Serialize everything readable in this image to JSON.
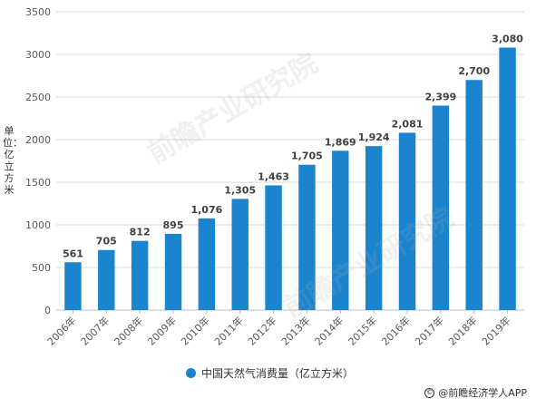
{
  "chart_data": {
    "type": "bar",
    "categories": [
      "2006年",
      "2007年",
      "2008年",
      "2009年",
      "2010年",
      "2011年",
      "2012年",
      "2013年",
      "2014年",
      "2015年",
      "2016年",
      "2017年",
      "2018年",
      "2019年"
    ],
    "series": [
      {
        "name": "中国天然气消费量（亿立方米）",
        "values": [
          561,
          705,
          812,
          895,
          1076,
          1305,
          1463,
          1705,
          1869,
          1924,
          2081,
          2399,
          2700,
          3080
        ],
        "labels": [
          "561",
          "705",
          "812",
          "895",
          "1,076",
          "1,305",
          "1,463",
          "1,705",
          "1,869",
          "1,924",
          "2,081",
          "2,399",
          "2,700",
          "3,080"
        ]
      }
    ],
    "ylabel": "单位：亿立方米",
    "ylim": [
      0,
      3500
    ],
    "yticks": [
      0,
      500,
      1000,
      1500,
      2000,
      2500,
      3000,
      3500
    ],
    "grid": true,
    "legend": "bottom"
  },
  "colors": {
    "bar": "#1b84cf",
    "grid": "#d9d9d9",
    "axis": "#bfbfbf",
    "text": "#595959",
    "label": "#404040"
  },
  "footer": {
    "text": "@前瞻经济学人APP",
    "icon": "copyright-icon"
  },
  "watermark": {
    "text": "前瞻产业研究院"
  }
}
